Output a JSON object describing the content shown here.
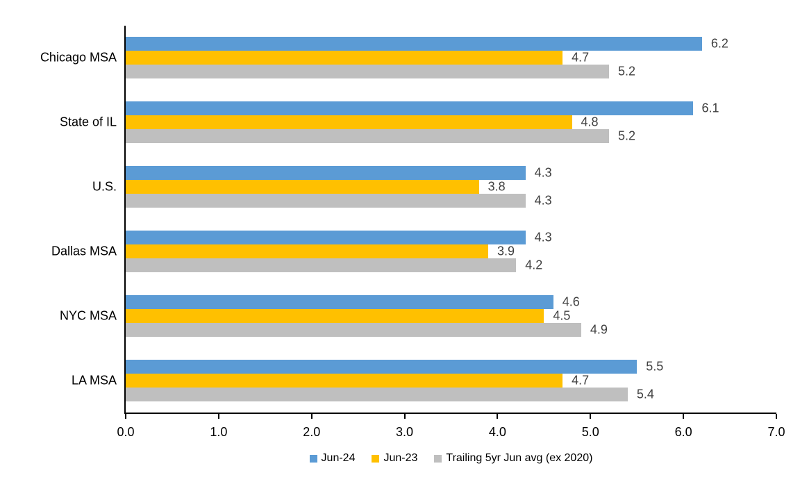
{
  "chart_data": {
    "type": "bar",
    "orientation": "horizontal",
    "title": "",
    "xlabel": "",
    "ylabel": "",
    "xlim": [
      0,
      7
    ],
    "x_ticks": [
      "0.0",
      "1.0",
      "2.0",
      "3.0",
      "4.0",
      "5.0",
      "6.0",
      "7.0"
    ],
    "grid": false,
    "data_labels": true,
    "legend_position": "bottom",
    "categories": [
      "Chicago MSA",
      "State of IL",
      "U.S.",
      "Dallas MSA",
      "NYC MSA",
      "LA MSA"
    ],
    "series": [
      {
        "name": "Jun-24",
        "color": "#5B9BD5",
        "values": [
          6.2,
          6.1,
          4.3,
          4.3,
          4.6,
          5.5
        ],
        "labels": [
          "6.2",
          "6.1",
          "4.3",
          "4.3",
          "4.6",
          "5.5"
        ]
      },
      {
        "name": "Jun-23",
        "color": "#FFC000",
        "values": [
          4.7,
          4.8,
          3.8,
          3.9,
          4.5,
          4.7
        ],
        "labels": [
          "4.7",
          "4.8",
          "3.8",
          "3.9",
          "4.5",
          "4.7"
        ]
      },
      {
        "name": "Trailing 5yr Jun avg (ex 2020)",
        "color": "#BFBFBF",
        "values": [
          5.2,
          5.2,
          4.3,
          4.2,
          4.9,
          5.4
        ],
        "labels": [
          "5.2",
          "5.2",
          "4.3",
          "4.2",
          "4.9",
          "5.4"
        ]
      }
    ],
    "colors": {
      "axis": "#000000",
      "data_label": "#404040",
      "category_label": "#000000",
      "tick_label": "#000000"
    }
  }
}
